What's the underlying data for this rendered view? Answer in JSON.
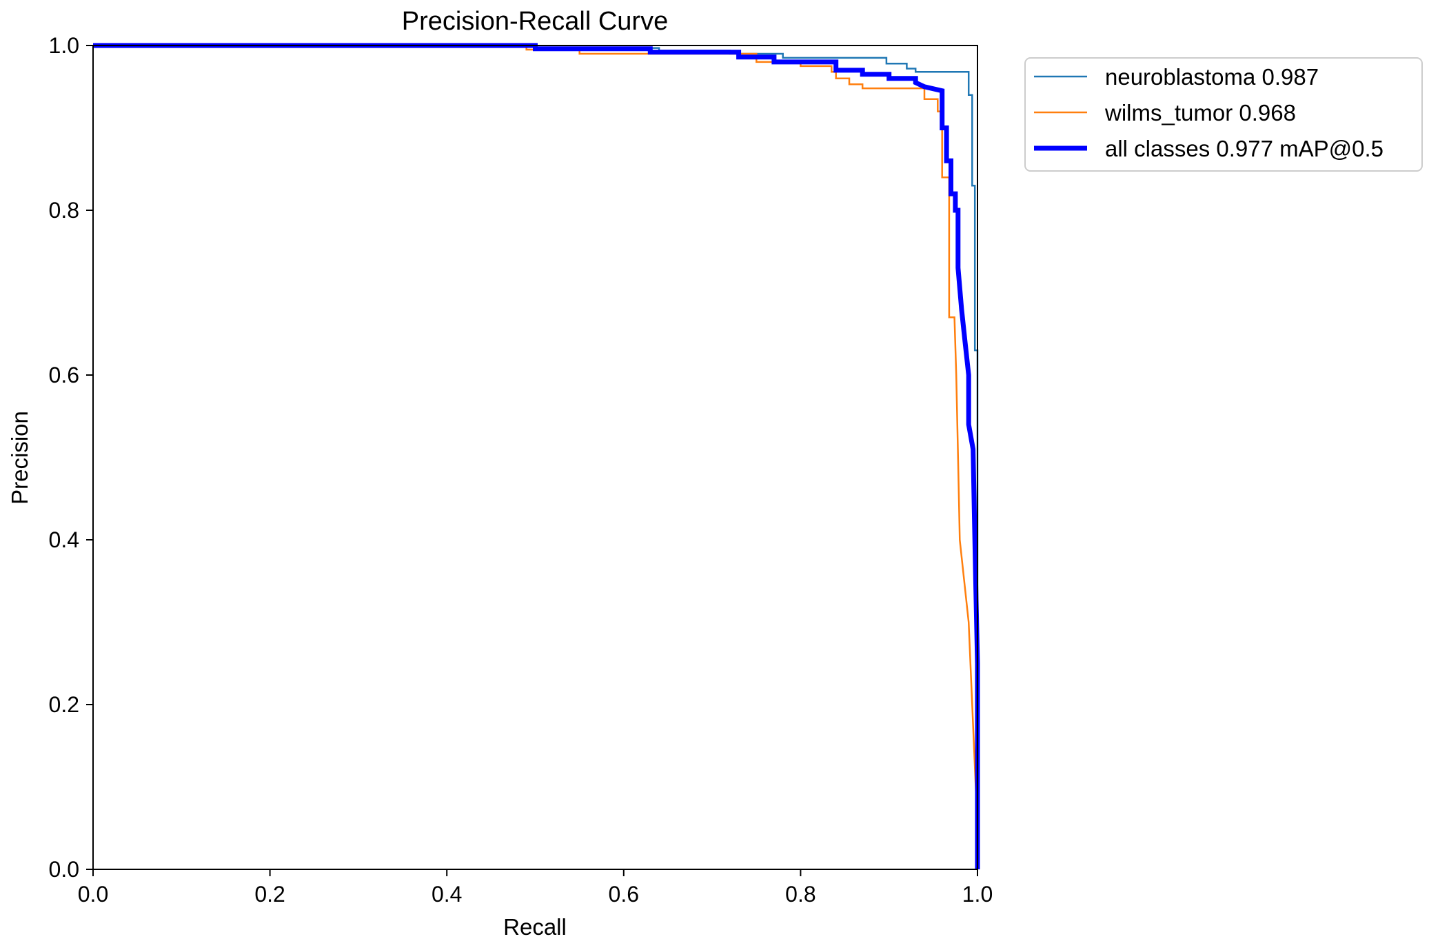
{
  "chart_data": {
    "type": "line",
    "title": "Precision-Recall Curve",
    "xlabel": "Recall",
    "ylabel": "Precision",
    "xlim": [
      0,
      1
    ],
    "ylim": [
      0,
      1
    ],
    "xticks": [
      0.0,
      0.2,
      0.4,
      0.6,
      0.8,
      1.0
    ],
    "yticks": [
      0.0,
      0.2,
      0.4,
      0.6,
      0.8,
      1.0
    ],
    "xtick_labels": [
      "0.0",
      "0.2",
      "0.4",
      "0.6",
      "0.8",
      "1.0"
    ],
    "ytick_labels": [
      "0.0",
      "0.2",
      "0.4",
      "0.6",
      "0.8",
      "1.0"
    ],
    "grid": false,
    "legend_position": "outside-top-right",
    "series": [
      {
        "name": "neuroblastoma 0.987",
        "color": "#1f77b4",
        "width": "thin",
        "points": [
          [
            0.0,
            1.0
          ],
          [
            0.5,
            1.0
          ],
          [
            0.5,
            0.997
          ],
          [
            0.64,
            0.997
          ],
          [
            0.64,
            0.994
          ],
          [
            0.72,
            0.994
          ],
          [
            0.72,
            0.99
          ],
          [
            0.78,
            0.99
          ],
          [
            0.78,
            0.985
          ],
          [
            0.897,
            0.985
          ],
          [
            0.897,
            0.978
          ],
          [
            0.92,
            0.978
          ],
          [
            0.92,
            0.972
          ],
          [
            0.93,
            0.972
          ],
          [
            0.93,
            0.968
          ],
          [
            0.99,
            0.968
          ],
          [
            0.99,
            0.94
          ],
          [
            0.994,
            0.94
          ],
          [
            0.994,
            0.83
          ],
          [
            0.997,
            0.83
          ],
          [
            0.997,
            0.63
          ],
          [
            1.0,
            0.63
          ],
          [
            1.0,
            0.0
          ]
        ]
      },
      {
        "name": "wilms_tumor 0.968",
        "color": "#ff7f0e",
        "width": "thin",
        "points": [
          [
            0.0,
            1.0
          ],
          [
            0.49,
            1.0
          ],
          [
            0.49,
            0.995
          ],
          [
            0.55,
            0.995
          ],
          [
            0.55,
            0.99
          ],
          [
            0.75,
            0.99
          ],
          [
            0.75,
            0.98
          ],
          [
            0.8,
            0.98
          ],
          [
            0.8,
            0.975
          ],
          [
            0.835,
            0.975
          ],
          [
            0.835,
            0.968
          ],
          [
            0.84,
            0.968
          ],
          [
            0.84,
            0.96
          ],
          [
            0.855,
            0.96
          ],
          [
            0.855,
            0.953
          ],
          [
            0.87,
            0.953
          ],
          [
            0.87,
            0.948
          ],
          [
            0.94,
            0.948
          ],
          [
            0.94,
            0.935
          ],
          [
            0.955,
            0.935
          ],
          [
            0.955,
            0.92
          ],
          [
            0.96,
            0.92
          ],
          [
            0.96,
            0.84
          ],
          [
            0.968,
            0.84
          ],
          [
            0.968,
            0.67
          ],
          [
            0.974,
            0.67
          ],
          [
            0.976,
            0.6
          ],
          [
            0.978,
            0.5
          ],
          [
            0.98,
            0.4
          ],
          [
            0.99,
            0.3
          ],
          [
            0.996,
            0.15
          ],
          [
            1.0,
            0.05
          ],
          [
            1.0,
            0.0
          ]
        ]
      },
      {
        "name": "all classes 0.977 mAP@0.5",
        "color": "#0000ff",
        "width": "thick",
        "points": [
          [
            0.0,
            1.0
          ],
          [
            0.5,
            1.0
          ],
          [
            0.5,
            0.996
          ],
          [
            0.63,
            0.996
          ],
          [
            0.63,
            0.992
          ],
          [
            0.73,
            0.992
          ],
          [
            0.73,
            0.986
          ],
          [
            0.77,
            0.986
          ],
          [
            0.77,
            0.98
          ],
          [
            0.84,
            0.98
          ],
          [
            0.84,
            0.97
          ],
          [
            0.87,
            0.97
          ],
          [
            0.87,
            0.965
          ],
          [
            0.9,
            0.965
          ],
          [
            0.9,
            0.96
          ],
          [
            0.93,
            0.96
          ],
          [
            0.93,
            0.955
          ],
          [
            0.94,
            0.95
          ],
          [
            0.96,
            0.945
          ],
          [
            0.96,
            0.9
          ],
          [
            0.965,
            0.9
          ],
          [
            0.965,
            0.86
          ],
          [
            0.97,
            0.86
          ],
          [
            0.97,
            0.82
          ],
          [
            0.975,
            0.82
          ],
          [
            0.975,
            0.8
          ],
          [
            0.978,
            0.8
          ],
          [
            0.978,
            0.73
          ],
          [
            0.982,
            0.68
          ],
          [
            0.986,
            0.64
          ],
          [
            0.99,
            0.6
          ],
          [
            0.99,
            0.54
          ],
          [
            0.995,
            0.51
          ],
          [
            0.998,
            0.35
          ],
          [
            1.0,
            0.25
          ],
          [
            1.0,
            0.0
          ]
        ]
      }
    ]
  }
}
